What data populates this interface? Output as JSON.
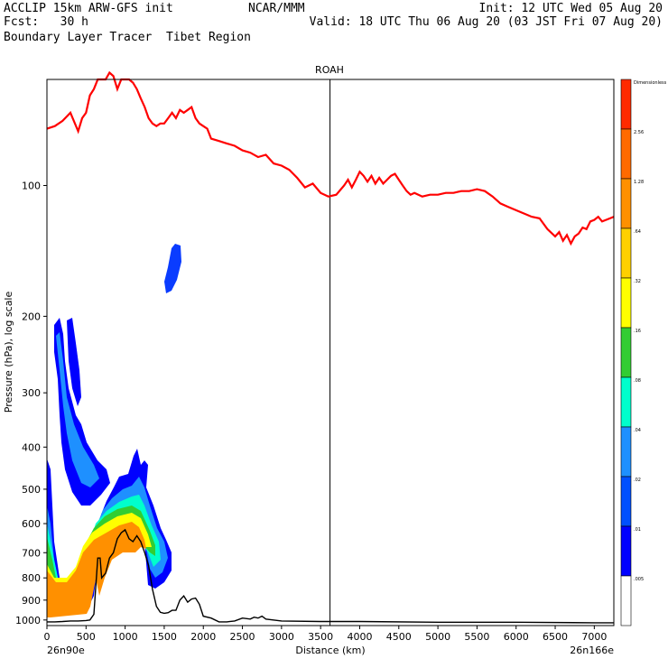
{
  "header": {
    "left_line1": "ACCLIP 15km ARW-GFS init",
    "left_line2": "Fcst:   30 h",
    "left_line3": "Boundary Layer Tracer  Tibet Region",
    "center_line1": "NCAR/MMM",
    "right_line1": "Init: 12 UTC Wed 05 Aug 20",
    "right_line2": "Valid: 18 UTC Thu 06 Aug 20 (03 JST Fri 07 Aug 20)"
  },
  "chart_data": {
    "type": "heatmap",
    "title": "ROAH",
    "xlabel": "Distance (km)",
    "ylabel": "Pressure (hPa), log scale",
    "x_start_label": "26n90e",
    "x_end_label": "26n166e",
    "xlim": [
      0,
      7250
    ],
    "ylim_hpa": [
      1030,
      57
    ],
    "y_scale": "log",
    "x_ticks": [
      0,
      500,
      1000,
      1500,
      2000,
      2500,
      3000,
      3500,
      4000,
      4500,
      5000,
      5500,
      6000,
      6500,
      7000
    ],
    "x_tick_labels": [
      "0",
      "500",
      "1000",
      "1500",
      "2000",
      "2500",
      "3000",
      "3500",
      "4000",
      "4500",
      "5000",
      "5500",
      "6000",
      "6500",
      "7000"
    ],
    "y_ticks": [
      100,
      200,
      300,
      400,
      500,
      600,
      700,
      800,
      900,
      1000
    ],
    "y_tick_labels": [
      "100",
      "200",
      "300",
      "400",
      "500",
      "600",
      "700",
      "800",
      "900",
      "1000"
    ],
    "vertical_marker_km": 3620,
    "colorbar": {
      "levels": [
        "Dimensionless",
        "2.56",
        "1.28",
        ".64",
        ".32",
        ".16",
        ".08",
        ".04",
        ".02",
        ".01",
        ".005"
      ],
      "colors": [
        "#ff2a00",
        "#ff6a00",
        "#ff9000",
        "#ffd000",
        "#ffff00",
        "#32cd32",
        "#00ffcc",
        "#1e90ff",
        "#0050ff",
        "#0000ff",
        "#ffffff"
      ]
    },
    "tropopause": {
      "name": "tropopause",
      "color": "#ff0000",
      "points": [
        [
          0,
          74
        ],
        [
          100,
          73
        ],
        [
          200,
          71
        ],
        [
          300,
          68
        ],
        [
          400,
          75
        ],
        [
          450,
          70
        ],
        [
          500,
          68
        ],
        [
          550,
          62
        ],
        [
          600,
          60
        ],
        [
          650,
          57
        ],
        [
          700,
          57
        ],
        [
          750,
          57
        ],
        [
          800,
          55
        ],
        [
          850,
          56
        ],
        [
          900,
          60
        ],
        [
          950,
          57
        ],
        [
          1000,
          57
        ],
        [
          1050,
          57
        ],
        [
          1100,
          58
        ],
        [
          1150,
          60
        ],
        [
          1200,
          63
        ],
        [
          1250,
          66
        ],
        [
          1300,
          70
        ],
        [
          1350,
          72
        ],
        [
          1400,
          73
        ],
        [
          1450,
          72
        ],
        [
          1500,
          72
        ],
        [
          1550,
          70
        ],
        [
          1600,
          68
        ],
        [
          1650,
          70
        ],
        [
          1700,
          67
        ],
        [
          1750,
          68
        ],
        [
          1800,
          67
        ],
        [
          1850,
          66
        ],
        [
          1900,
          70
        ],
        [
          1950,
          72
        ],
        [
          2000,
          73
        ],
        [
          2050,
          74
        ],
        [
          2100,
          78
        ],
        [
          2200,
          79
        ],
        [
          2300,
          80
        ],
        [
          2400,
          81
        ],
        [
          2500,
          83
        ],
        [
          2600,
          84
        ],
        [
          2700,
          86
        ],
        [
          2800,
          85
        ],
        [
          2900,
          89
        ],
        [
          3000,
          90
        ],
        [
          3100,
          92
        ],
        [
          3200,
          96
        ],
        [
          3300,
          101
        ],
        [
          3400,
          99
        ],
        [
          3500,
          104
        ],
        [
          3600,
          106
        ],
        [
          3700,
          105
        ],
        [
          3800,
          100
        ],
        [
          3850,
          97
        ],
        [
          3900,
          101
        ],
        [
          3950,
          97
        ],
        [
          4000,
          93
        ],
        [
          4050,
          95
        ],
        [
          4100,
          98
        ],
        [
          4150,
          95
        ],
        [
          4200,
          99
        ],
        [
          4250,
          96
        ],
        [
          4300,
          99
        ],
        [
          4350,
          97
        ],
        [
          4400,
          95
        ],
        [
          4450,
          94
        ],
        [
          4500,
          97
        ],
        [
          4550,
          100
        ],
        [
          4600,
          103
        ],
        [
          4650,
          105
        ],
        [
          4700,
          104
        ],
        [
          4800,
          106
        ],
        [
          4900,
          105
        ],
        [
          5000,
          105
        ],
        [
          5100,
          104
        ],
        [
          5200,
          104
        ],
        [
          5300,
          103
        ],
        [
          5400,
          103
        ],
        [
          5500,
          102
        ],
        [
          5600,
          103
        ],
        [
          5700,
          106
        ],
        [
          5800,
          110
        ],
        [
          5900,
          112
        ],
        [
          6000,
          114
        ],
        [
          6100,
          116
        ],
        [
          6200,
          118
        ],
        [
          6300,
          119
        ],
        [
          6400,
          126
        ],
        [
          6500,
          131
        ],
        [
          6550,
          128
        ],
        [
          6600,
          134
        ],
        [
          6650,
          130
        ],
        [
          6700,
          136
        ],
        [
          6750,
          131
        ],
        [
          6800,
          129
        ],
        [
          6850,
          125
        ],
        [
          6900,
          126
        ],
        [
          6950,
          121
        ],
        [
          7000,
          120
        ],
        [
          7050,
          118
        ],
        [
          7100,
          121
        ],
        [
          7150,
          120
        ],
        [
          7200,
          119
        ],
        [
          7250,
          118
        ]
      ]
    },
    "terrain": {
      "name": "terrain",
      "color": "#000000",
      "points": [
        [
          0,
          1010
        ],
        [
          100,
          1010
        ],
        [
          200,
          1008
        ],
        [
          300,
          1005
        ],
        [
          400,
          1005
        ],
        [
          500,
          1003
        ],
        [
          550,
          1000
        ],
        [
          600,
          970
        ],
        [
          650,
          720
        ],
        [
          680,
          720
        ],
        [
          700,
          800
        ],
        [
          750,
          780
        ],
        [
          800,
          720
        ],
        [
          850,
          700
        ],
        [
          900,
          650
        ],
        [
          950,
          630
        ],
        [
          1000,
          620
        ],
        [
          1050,
          650
        ],
        [
          1100,
          660
        ],
        [
          1150,
          640
        ],
        [
          1200,
          660
        ],
        [
          1250,
          700
        ],
        [
          1300,
          750
        ],
        [
          1350,
          850
        ],
        [
          1400,
          930
        ],
        [
          1450,
          960
        ],
        [
          1500,
          965
        ],
        [
          1550,
          962
        ],
        [
          1600,
          950
        ],
        [
          1650,
          950
        ],
        [
          1700,
          900
        ],
        [
          1750,
          880
        ],
        [
          1800,
          910
        ],
        [
          1850,
          895
        ],
        [
          1900,
          890
        ],
        [
          1950,
          920
        ],
        [
          2000,
          980
        ],
        [
          2100,
          990
        ],
        [
          2200,
          1010
        ],
        [
          2300,
          1010
        ],
        [
          2400,
          1005
        ],
        [
          2500,
          990
        ],
        [
          2600,
          995
        ],
        [
          2650,
          985
        ],
        [
          2700,
          990
        ],
        [
          2750,
          980
        ],
        [
          2800,
          995
        ],
        [
          3000,
          1005
        ],
        [
          3500,
          1008
        ],
        [
          4000,
          1008
        ],
        [
          5000,
          1012
        ],
        [
          6000,
          1012
        ],
        [
          7000,
          1015
        ],
        [
          7250,
          1015
        ]
      ]
    }
  }
}
